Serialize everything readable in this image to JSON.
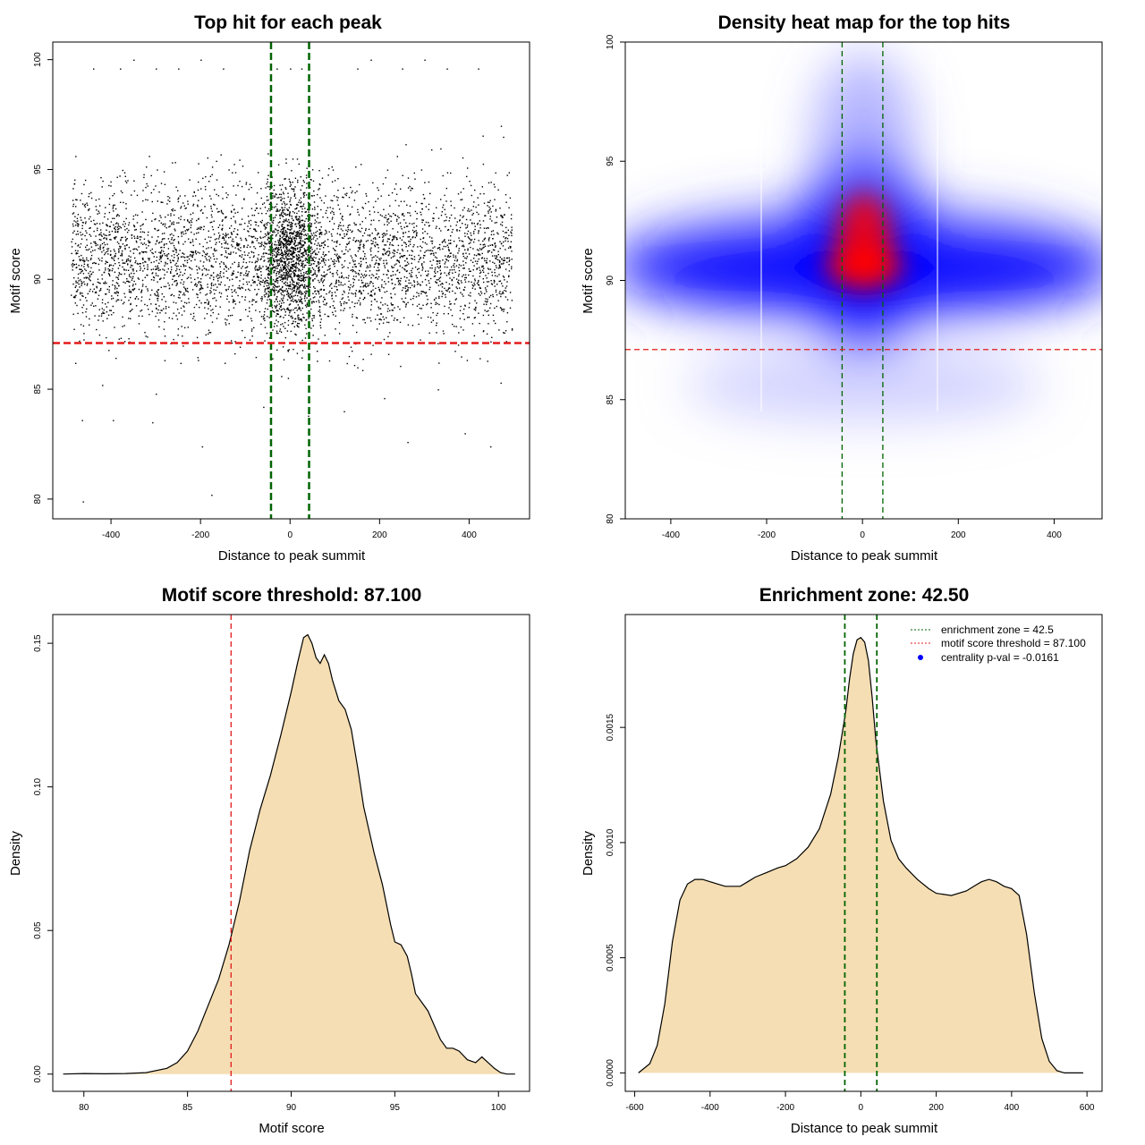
{
  "chart_data": [
    {
      "type": "scatter",
      "title": "Top hit for each peak",
      "xlabel": "Distance to peak summit",
      "ylabel": "Motif score",
      "xlim": [
        -530,
        535
      ],
      "ylim": [
        79.1,
        100.8
      ],
      "xticks": [
        "-400",
        "-200",
        "0",
        "200",
        "400"
      ],
      "yticks": [
        "80",
        "85",
        "90",
        "95",
        "100"
      ],
      "points_description_range": {
        "x": [
          -490,
          495
        ],
        "y": [
          79.9,
          100
        ]
      },
      "series": [
        {
          "values": [
            [
              -463,
              79.9
            ],
            [
              -176,
              80.2
            ],
            [
              -197,
              82.4
            ],
            [
              447,
              82.4
            ],
            [
              -308,
              83.5
            ],
            [
              -396,
              83.6
            ],
            [
              -465,
              83.6
            ],
            [
              390,
              83.0
            ],
            [
              262,
              82.6
            ],
            [
              40,
              83.8
            ],
            [
              -60,
              84.2
            ],
            [
              120,
              84.0
            ],
            [
              -300,
              84.8
            ],
            [
              210,
              84.6
            ],
            [
              -420,
              85.2
            ],
            [
              330,
              85.0
            ],
            [
              470,
              85.3
            ],
            [
              -20,
              85.6
            ],
            [
              -245,
              86.2
            ],
            [
              150,
              86.0
            ],
            [
              -480,
              86.2
            ],
            [
              440,
              86.3
            ],
            [
              0,
              99.6
            ],
            [
              -30,
              99.6
            ],
            [
              25,
              99.6
            ],
            [
              -440,
              99.6
            ],
            [
              -380,
              99.6
            ],
            [
              -300,
              99.6
            ],
            [
              -250,
              99.6
            ],
            [
              -150,
              99.6
            ],
            [
              150,
              99.6
            ],
            [
              250,
              99.6
            ],
            [
              350,
              99.6
            ],
            [
              420,
              99.6
            ],
            [
              -350,
              100
            ],
            [
              -200,
              100
            ],
            [
              180,
              100
            ],
            [
              300,
              100
            ],
            [
              5,
              95.5
            ],
            [
              -10,
              95.5
            ],
            [
              15,
              95.5
            ],
            [
              0,
              92.5
            ],
            [
              0,
              90.5
            ]
          ]
        }
      ],
      "hlines": [
        {
          "y": 87.1,
          "color": "#e31a1c"
        }
      ],
      "vlines": [
        {
          "x": -42.5,
          "color": "#006400"
        },
        {
          "x": 42.5,
          "color": "#006400"
        }
      ]
    },
    {
      "type": "heatmap",
      "title": "Density heat map for the top hits",
      "xlabel": "Distance to peak summit",
      "ylabel": "Motif score",
      "xlim": [
        -495,
        500
      ],
      "ylim": [
        80,
        100
      ],
      "xticks": [
        "-400",
        "-200",
        "0",
        "200",
        "400"
      ],
      "yticks": [
        "80",
        "85",
        "90",
        "95",
        "100"
      ],
      "colors": [
        "#ffffff",
        "#0000ff",
        "#ff0000"
      ],
      "hotspots": [
        [
          0,
          90.5
        ],
        [
          0,
          92.8
        ]
      ],
      "hlines": [
        {
          "y": 87.1,
          "color": "#e31a1c"
        }
      ],
      "vlines": [
        {
          "x": -42.5,
          "color": "#006400"
        },
        {
          "x": 42.5,
          "color": "#006400"
        }
      ]
    },
    {
      "type": "area",
      "title": "Motif score threshold: 87.100",
      "xlabel": "Motif score",
      "ylabel": "Density",
      "xlim": [
        78.5,
        101.5
      ],
      "ylim": [
        -0.006,
        0.16
      ],
      "xticks": [
        "80",
        "85",
        "90",
        "95",
        "100"
      ],
      "yticks": [
        "0.00",
        "0.05",
        "0.10",
        "0.15"
      ],
      "fill": "#f5deb3",
      "x": [
        79.0,
        80.0,
        81.0,
        82.0,
        83.0,
        84.0,
        84.5,
        85.0,
        85.5,
        86.0,
        86.5,
        87.0,
        87.5,
        88.0,
        88.5,
        89.0,
        89.5,
        90.0,
        90.3,
        90.6,
        90.8,
        91.0,
        91.2,
        91.4,
        91.6,
        91.8,
        92.0,
        92.3,
        92.6,
        92.9,
        93.2,
        93.5,
        94.0,
        94.4,
        94.8,
        95.0,
        95.3,
        95.6,
        95.8,
        96.0,
        96.3,
        96.6,
        96.9,
        97.2,
        97.5,
        97.8,
        98.1,
        98.5,
        98.9,
        99.2,
        99.5,
        99.8,
        100.1,
        100.4,
        100.8
      ],
      "values": [
        0.0,
        0.0002,
        0.0001,
        0.0002,
        0.0005,
        0.002,
        0.004,
        0.008,
        0.015,
        0.024,
        0.033,
        0.045,
        0.06,
        0.078,
        0.092,
        0.104,
        0.118,
        0.133,
        0.143,
        0.152,
        0.153,
        0.15,
        0.145,
        0.143,
        0.146,
        0.143,
        0.137,
        0.13,
        0.127,
        0.12,
        0.107,
        0.093,
        0.077,
        0.066,
        0.052,
        0.046,
        0.045,
        0.041,
        0.035,
        0.028,
        0.025,
        0.022,
        0.017,
        0.012,
        0.009,
        0.009,
        0.008,
        0.005,
        0.004,
        0.006,
        0.004,
        0.002,
        0.0005,
        0.0,
        0.0
      ],
      "vlines": [
        {
          "x": 87.1,
          "color": "#e31a1c"
        }
      ]
    },
    {
      "type": "area",
      "title": "Enrichment zone: 42.50",
      "xlabel": "Distance to peak summit",
      "ylabel": "Density",
      "xlim": [
        -625,
        640
      ],
      "ylim": [
        -8e-05,
        0.00199
      ],
      "xticks": [
        "-600",
        "-400",
        "-200",
        "0",
        "200",
        "400",
        "600"
      ],
      "yticks": [
        "0.0000",
        "0.0005",
        "0.0010",
        "0.0015"
      ],
      "fill": "#f5deb3",
      "x": [
        -590,
        -560,
        -540,
        -520,
        -500,
        -480,
        -460,
        -440,
        -420,
        -400,
        -360,
        -320,
        -300,
        -280,
        -250,
        -220,
        -200,
        -170,
        -140,
        -110,
        -80,
        -60,
        -40,
        -30,
        -20,
        -10,
        0,
        10,
        20,
        30,
        40,
        60,
        80,
        100,
        120,
        150,
        180,
        200,
        240,
        280,
        300,
        320,
        340,
        360,
        380,
        400,
        420,
        440,
        460,
        480,
        500,
        520,
        540,
        560,
        590
      ],
      "values": [
        0.0,
        4e-05,
        0.00012,
        0.0003,
        0.00057,
        0.00075,
        0.00082,
        0.00084,
        0.00084,
        0.00083,
        0.00081,
        0.00081,
        0.00083,
        0.00085,
        0.00087,
        0.00089,
        0.0009,
        0.00093,
        0.00098,
        0.00106,
        0.00121,
        0.00137,
        0.00157,
        0.00171,
        0.00182,
        0.00188,
        0.00189,
        0.00187,
        0.00179,
        0.00163,
        0.00144,
        0.00118,
        0.00101,
        0.00093,
        0.00089,
        0.00084,
        0.0008,
        0.00078,
        0.00077,
        0.00079,
        0.00081,
        0.00083,
        0.00084,
        0.00083,
        0.00081,
        0.0008,
        0.00077,
        0.0006,
        0.00035,
        0.00015,
        5e-05,
        1e-05,
        0.0,
        0.0,
        0.0
      ],
      "vlines": [
        {
          "x": -42.5,
          "color": "#006400"
        },
        {
          "x": 42.5,
          "color": "#006400"
        }
      ],
      "legend": {
        "position": "top-right",
        "entries": [
          {
            "label": "enrichment zone = 42.5",
            "color": "#006400",
            "style": "dotted-line"
          },
          {
            "label": "motif score threshold = 87.100",
            "color": "#e31a1c",
            "style": "dotted-line"
          },
          {
            "label": "centrality p-val = -0.0161",
            "color": "#0000ff",
            "style": "point"
          }
        ]
      }
    }
  ]
}
